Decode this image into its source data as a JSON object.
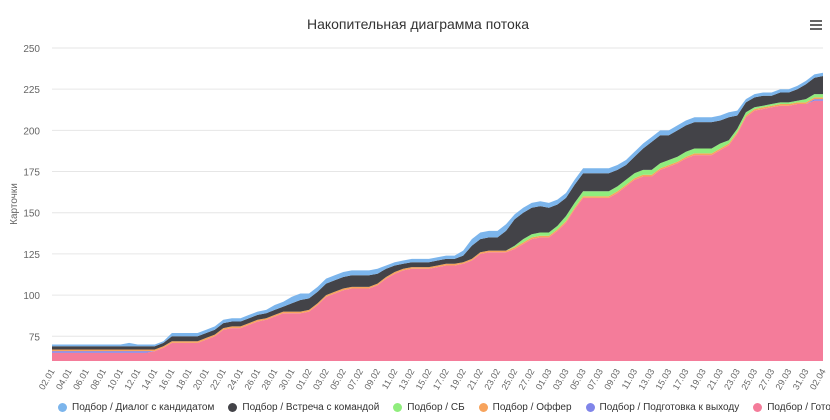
{
  "chart_data": {
    "type": "area",
    "title": "Накопительная диаграмма потока",
    "ylabel": "Карточки",
    "xlabel": "",
    "ylim": [
      60,
      250
    ],
    "yticks": [
      75,
      100,
      125,
      150,
      175,
      200,
      225,
      250
    ],
    "grid": true,
    "legend_position": "bottom",
    "x": [
      "02.01",
      "03.01",
      "04.01",
      "05.01",
      "06.01",
      "07.01",
      "08.01",
      "09.01",
      "10.01",
      "11.01",
      "12.01",
      "13.01",
      "14.01",
      "15.01",
      "16.01",
      "17.01",
      "18.01",
      "19.01",
      "20.01",
      "21.01",
      "22.01",
      "23.01",
      "24.01",
      "25.01",
      "26.01",
      "27.01",
      "28.01",
      "29.01",
      "30.01",
      "31.01",
      "01.02",
      "02.02",
      "03.02",
      "04.02",
      "05.02",
      "06.02",
      "07.02",
      "08.02",
      "09.02",
      "10.02",
      "11.02",
      "12.02",
      "13.02",
      "14.02",
      "15.02",
      "16.02",
      "17.02",
      "18.02",
      "19.02",
      "20.02",
      "21.02",
      "22.02",
      "23.02",
      "24.02",
      "25.02",
      "26.02",
      "27.02",
      "28.02",
      "01.03",
      "02.03",
      "03.03",
      "04.03",
      "05.03",
      "06.03",
      "07.03",
      "08.03",
      "09.03",
      "10.03",
      "11.03",
      "12.03",
      "13.03",
      "14.03",
      "15.03",
      "16.03",
      "17.03",
      "18.03",
      "19.03",
      "20.03",
      "21.03",
      "22.03",
      "23.03",
      "24.03",
      "25.03",
      "26.03",
      "27.03",
      "28.03",
      "29.03",
      "30.03",
      "31.03",
      "01.04",
      "02.04"
    ],
    "xticklabels": [
      "02.01",
      "04.01",
      "06.01",
      "08.01",
      "10.01",
      "12.01",
      "14.01",
      "16.01",
      "18.01",
      "20.01",
      "22.01",
      "24.01",
      "26.01",
      "28.01",
      "30.01",
      "01.02",
      "03.02",
      "05.02",
      "07.02",
      "09.02",
      "11.02",
      "13.02",
      "15.02",
      "17.02",
      "19.02",
      "21.02",
      "23.02",
      "25.02",
      "27.02",
      "01.03",
      "03.03",
      "05.03",
      "07.03",
      "09.03",
      "11.03",
      "13.03",
      "15.03",
      "17.03",
      "19.03",
      "21.03",
      "23.03",
      "25.03",
      "27.03",
      "29.03",
      "31.03",
      "02.04"
    ],
    "series": [
      {
        "name": "Подбор / Готово",
        "color": "#f47c9a",
        "values": [
          65,
          65,
          65,
          65,
          65,
          65,
          65,
          65,
          65,
          65,
          65,
          65,
          66,
          68,
          71,
          71,
          71,
          71,
          73,
          75,
          79,
          80,
          80,
          82,
          84,
          85,
          87,
          89,
          89,
          89,
          90,
          94,
          99,
          101,
          103,
          104,
          104,
          104,
          106,
          110,
          113,
          115,
          116,
          116,
          116,
          117,
          118,
          118,
          119,
          121,
          125,
          126,
          126,
          126,
          128,
          131,
          134,
          135,
          135,
          139,
          144,
          152,
          159,
          159,
          159,
          159,
          162,
          166,
          170,
          172,
          172,
          176,
          178,
          180,
          183,
          185,
          185,
          185,
          188,
          191,
          198,
          208,
          212,
          213,
          214,
          215,
          215,
          216,
          216,
          218,
          218
        ]
      },
      {
        "name": "Подбор / Подготовка к выходу",
        "color": "#8085e9",
        "values": [
          1,
          1,
          1,
          1,
          1,
          1,
          1,
          1,
          1,
          1,
          1,
          1,
          0,
          0,
          0,
          0,
          0,
          0,
          0,
          0,
          0,
          0,
          0,
          0,
          0,
          0,
          0,
          0,
          0,
          0,
          0,
          0,
          0,
          0,
          0,
          0,
          0,
          0,
          0,
          0,
          0,
          0,
          0,
          0,
          0,
          0,
          0,
          0,
          0,
          0,
          0,
          0,
          0,
          0,
          0,
          0,
          0,
          0,
          0,
          0,
          0,
          0,
          0,
          0,
          0,
          0,
          0,
          0,
          0,
          0,
          0,
          0,
          0,
          0,
          0,
          0,
          0,
          0,
          0,
          0,
          0,
          0,
          0,
          0,
          0,
          0,
          0,
          0,
          0,
          1,
          1
        ]
      },
      {
        "name": "Подбор / Оффер",
        "color": "#f7a35c",
        "values": [
          1,
          1,
          1,
          1,
          1,
          1,
          1,
          1,
          1,
          1,
          1,
          1,
          1,
          1,
          1,
          1,
          1,
          1,
          1,
          1,
          1,
          1,
          1,
          1,
          1,
          1,
          1,
          1,
          1,
          1,
          1,
          1,
          1,
          1,
          1,
          1,
          1,
          1,
          1,
          1,
          1,
          1,
          1,
          1,
          1,
          1,
          1,
          1,
          1,
          1,
          1,
          1,
          1,
          1,
          1,
          1,
          1,
          1,
          1,
          1,
          1,
          1,
          1,
          1,
          1,
          1,
          1,
          1,
          1,
          1,
          1,
          1,
          1,
          1,
          1,
          1,
          1,
          1,
          1,
          1,
          1,
          1,
          1,
          1,
          1,
          1,
          1,
          1,
          1,
          1,
          1
        ]
      },
      {
        "name": "Подбор / СБ",
        "color": "#90ed7d",
        "values": [
          0,
          0,
          0,
          0,
          0,
          0,
          0,
          0,
          0,
          0,
          0,
          0,
          0,
          0,
          0,
          0,
          0,
          0,
          0,
          0,
          0,
          0,
          0,
          0,
          0,
          0,
          0,
          0,
          0,
          0,
          0,
          0,
          0,
          0,
          0,
          0,
          0,
          0,
          0,
          0,
          0,
          0,
          0,
          0,
          0,
          0,
          0,
          0,
          0,
          0,
          0,
          0,
          0,
          0,
          1,
          2,
          2,
          2,
          2,
          2,
          3,
          3,
          3,
          3,
          3,
          3,
          3,
          3,
          3,
          3,
          3,
          3,
          3,
          3,
          3,
          3,
          3,
          3,
          3,
          2,
          2,
          2,
          1,
          1,
          1,
          1,
          1,
          1,
          2,
          2,
          2
        ]
      },
      {
        "name": "Подбор / Встреча с командой",
        "color": "#434348",
        "values": [
          2,
          2,
          2,
          2,
          2,
          2,
          2,
          2,
          2,
          2,
          2,
          2,
          2,
          2,
          3,
          3,
          3,
          3,
          3,
          3,
          3,
          3,
          3,
          3,
          3,
          3,
          3,
          3,
          5,
          7,
          7,
          7,
          7,
          7,
          7,
          7,
          7,
          7,
          6,
          5,
          4,
          3,
          3,
          3,
          3,
          3,
          3,
          3,
          4,
          8,
          8,
          8,
          8,
          12,
          16,
          16,
          16,
          16,
          15,
          13,
          11,
          11,
          11,
          11,
          11,
          11,
          10,
          9,
          10,
          13,
          17,
          17,
          15,
          16,
          16,
          16,
          16,
          16,
          14,
          14,
          8,
          6,
          6,
          6,
          5,
          6,
          6,
          7,
          9,
          10,
          11
        ]
      },
      {
        "name": "Подбор / Диалог с кандидатом",
        "color": "#7cb5ec",
        "values": [
          1,
          1,
          1,
          1,
          1,
          1,
          1,
          1,
          1,
          2,
          1,
          1,
          1,
          1,
          2,
          2,
          2,
          2,
          2,
          2,
          2,
          2,
          2,
          2,
          2,
          2,
          3,
          3,
          4,
          4,
          3,
          3,
          3,
          3,
          3,
          3,
          3,
          3,
          3,
          2,
          2,
          2,
          2,
          2,
          2,
          2,
          2,
          2,
          3,
          4,
          4,
          4,
          4,
          4,
          3,
          3,
          3,
          3,
          3,
          3,
          3,
          3,
          3,
          3,
          3,
          3,
          3,
          3,
          3,
          3,
          3,
          3,
          3,
          3,
          3,
          3,
          3,
          3,
          3,
          3,
          3,
          2,
          2,
          2,
          2,
          2,
          2,
          2,
          2,
          2,
          2
        ]
      }
    ]
  }
}
